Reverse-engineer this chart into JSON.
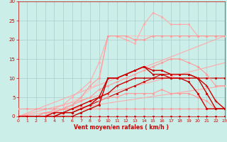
{
  "background_color": "#cceee8",
  "grid_color": "#aacccc",
  "xlabel": "Vent moyen/en rafales ( km/h )",
  "xlabel_color": "#cc0000",
  "tick_color": "#cc0000",
  "xlim": [
    0,
    23
  ],
  "ylim": [
    0,
    30
  ],
  "yticks": [
    0,
    5,
    10,
    15,
    20,
    25,
    30
  ],
  "xticks": [
    0,
    1,
    2,
    3,
    4,
    5,
    6,
    7,
    8,
    9,
    10,
    11,
    12,
    13,
    14,
    15,
    16,
    17,
    18,
    19,
    20,
    21,
    22,
    23
  ],
  "series": [
    {
      "x": [
        0,
        1,
        2,
        3,
        4,
        5,
        6,
        7,
        8,
        9,
        10,
        11,
        12,
        13,
        14,
        15,
        16,
        17,
        18,
        19,
        20,
        21,
        22,
        23
      ],
      "y": [
        0,
        0,
        0,
        0,
        0,
        0,
        0,
        0,
        0,
        0,
        0,
        0,
        0,
        0,
        0,
        0,
        0,
        0,
        0,
        0,
        0,
        0,
        0,
        0
      ],
      "color": "#cc0000",
      "lw": 0.8,
      "marker": "s",
      "ms": 1.5,
      "zorder": 3
    },
    {
      "x": [
        0,
        1,
        2,
        3,
        4,
        5,
        6,
        7,
        8,
        9,
        10,
        11,
        12,
        13,
        14,
        15,
        16,
        17,
        18,
        19,
        20,
        21,
        22,
        23
      ],
      "y": [
        2,
        2,
        2,
        2,
        2,
        2,
        2,
        2,
        2,
        2,
        2,
        2,
        2,
        2,
        2,
        2,
        2,
        2,
        2,
        2,
        2,
        2,
        2,
        2
      ],
      "color": "#ff9999",
      "lw": 0.8,
      "marker": "D",
      "ms": 1.5,
      "zorder": 3
    },
    {
      "x": [
        0,
        23
      ],
      "y": [
        0,
        8
      ],
      "color": "#ffaaaa",
      "lw": 0.8,
      "marker": "none",
      "ms": 0,
      "zorder": 2
    },
    {
      "x": [
        0,
        23
      ],
      "y": [
        0,
        14
      ],
      "color": "#ffaaaa",
      "lw": 0.8,
      "marker": "none",
      "ms": 0,
      "zorder": 2
    },
    {
      "x": [
        0,
        23
      ],
      "y": [
        0,
        21
      ],
      "color": "#ffaaaa",
      "lw": 0.8,
      "marker": "none",
      "ms": 0,
      "zorder": 2
    },
    {
      "x": [
        0,
        1,
        2,
        3,
        4,
        5,
        6,
        7,
        8,
        9,
        10,
        11,
        12,
        13,
        14,
        15,
        16,
        17,
        18,
        19,
        20,
        21,
        22,
        23
      ],
      "y": [
        0,
        0,
        0,
        0,
        0,
        0,
        0,
        1,
        2,
        3,
        10,
        10,
        11,
        12,
        13,
        11,
        11,
        10,
        10,
        9,
        6,
        2,
        2,
        2
      ],
      "color": "#cc0000",
      "lw": 1.0,
      "marker": "s",
      "ms": 2.0,
      "zorder": 4
    },
    {
      "x": [
        0,
        1,
        2,
        3,
        4,
        5,
        6,
        7,
        8,
        9,
        10,
        11,
        12,
        13,
        14,
        15,
        16,
        17,
        18,
        19,
        20,
        21,
        22,
        23
      ],
      "y": [
        0,
        0,
        0,
        0,
        0,
        1,
        1,
        2,
        3,
        4,
        5,
        6,
        7,
        8,
        9,
        10,
        11,
        11,
        11,
        11,
        10,
        10,
        10,
        10
      ],
      "color": "#cc0000",
      "lw": 0.8,
      "marker": "s",
      "ms": 1.5,
      "zorder": 3
    },
    {
      "x": [
        0,
        1,
        2,
        3,
        4,
        5,
        6,
        7,
        8,
        9,
        10,
        11,
        12,
        13,
        14,
        15,
        16,
        17,
        18,
        19,
        20,
        21,
        22,
        23
      ],
      "y": [
        0,
        0,
        0,
        0,
        0,
        1,
        1,
        2,
        3,
        5,
        6,
        8,
        9,
        10,
        10,
        10,
        10,
        10,
        10,
        10,
        10,
        8,
        4,
        2
      ],
      "color": "#cc0000",
      "lw": 1.0,
      "marker": "+",
      "ms": 3.0,
      "zorder": 4
    },
    {
      "x": [
        0,
        1,
        2,
        3,
        4,
        5,
        6,
        7,
        8,
        9,
        10,
        11,
        12,
        13,
        14,
        15,
        16,
        17,
        18,
        19,
        20,
        21,
        22,
        23
      ],
      "y": [
        0,
        0,
        0,
        0,
        1,
        1,
        2,
        3,
        4,
        5,
        10,
        10,
        11,
        12,
        13,
        12,
        12,
        11,
        11,
        11,
        10,
        6,
        2,
        2
      ],
      "color": "#cc0000",
      "lw": 1.0,
      "marker": "s",
      "ms": 2.0,
      "zorder": 4
    },
    {
      "x": [
        0,
        1,
        2,
        3,
        4,
        5,
        6,
        7,
        8,
        9,
        10,
        11,
        12,
        13,
        14,
        15,
        16,
        17,
        18,
        19,
        20,
        21,
        22,
        23
      ],
      "y": [
        0,
        0,
        0,
        1,
        1,
        2,
        3,
        4,
        5,
        7,
        8,
        9,
        10,
        11,
        12,
        13,
        14,
        15,
        15,
        14,
        13,
        11,
        8,
        8
      ],
      "color": "#ff9999",
      "lw": 0.8,
      "marker": "D",
      "ms": 1.5,
      "zorder": 3
    },
    {
      "x": [
        0,
        1,
        2,
        3,
        4,
        5,
        6,
        7,
        8,
        9,
        10,
        11,
        12,
        13,
        14,
        15,
        16,
        17,
        18,
        19,
        20,
        21,
        22,
        23
      ],
      "y": [
        0,
        0,
        0,
        0,
        1,
        2,
        3,
        5,
        8,
        10,
        21,
        21,
        21,
        20,
        20,
        21,
        21,
        21,
        21,
        21,
        21,
        21,
        21,
        21
      ],
      "color": "#ff9999",
      "lw": 0.8,
      "marker": "D",
      "ms": 1.5,
      "zorder": 3
    },
    {
      "x": [
        0,
        1,
        2,
        3,
        4,
        5,
        6,
        7,
        8,
        9,
        10,
        11,
        12,
        13,
        14,
        15,
        16,
        17,
        18,
        19,
        20,
        21,
        22,
        23
      ],
      "y": [
        0,
        0,
        0,
        0,
        2,
        3,
        5,
        7,
        9,
        14,
        21,
        21,
        20,
        19,
        24,
        27,
        26,
        24,
        24,
        24,
        21,
        21,
        21,
        21
      ],
      "color": "#ffaaaa",
      "lw": 0.8,
      "marker": "D",
      "ms": 1.5,
      "zorder": 2
    },
    {
      "x": [
        0,
        1,
        2,
        3,
        4,
        5,
        6,
        7,
        8,
        9,
        10,
        11,
        12,
        13,
        14,
        15,
        16,
        17,
        18,
        19,
        20,
        21,
        22,
        23
      ],
      "y": [
        0,
        0,
        0,
        0,
        1,
        2,
        4,
        5,
        7,
        9,
        21,
        21,
        21,
        21,
        21,
        21,
        21,
        21,
        21,
        21,
        21,
        21,
        21,
        21
      ],
      "color": "#ffbbbb",
      "lw": 0.7,
      "marker": "none",
      "ms": 0,
      "zorder": 2
    },
    {
      "x": [
        0,
        1,
        2,
        3,
        4,
        5,
        6,
        7,
        8,
        9,
        10,
        11,
        12,
        13,
        14,
        15,
        16,
        17,
        18,
        19,
        20,
        21,
        22,
        23
      ],
      "y": [
        0,
        0,
        0,
        1,
        1,
        2,
        2,
        3,
        4,
        4,
        5,
        5,
        6,
        6,
        6,
        6,
        7,
        6,
        6,
        6,
        5,
        4,
        2,
        2
      ],
      "color": "#ff9999",
      "lw": 0.8,
      "marker": "D",
      "ms": 1.5,
      "zorder": 3
    }
  ]
}
